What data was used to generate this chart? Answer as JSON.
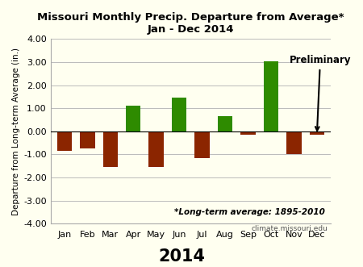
{
  "months": [
    "Jan",
    "Feb",
    "Mar",
    "Apr",
    "May",
    "Jun",
    "Jul",
    "Aug",
    "Sep",
    "Oct",
    "Nov",
    "Dec"
  ],
  "values": [
    -0.85,
    -0.75,
    -1.55,
    1.1,
    -1.55,
    1.45,
    -1.15,
    0.65,
    -0.15,
    3.05,
    -1.0,
    -0.15
  ],
  "colors": [
    "#8B2500",
    "#8B2500",
    "#8B2500",
    "#2E8B00",
    "#8B2500",
    "#2E8B00",
    "#8B2500",
    "#2E8B00",
    "#8B2500",
    "#2E8B00",
    "#8B2500",
    "#8B2500"
  ],
  "title_line1": "Missouri Monthly Precip. Departure from Average*",
  "title_line2": "Jan - Dec 2014",
  "ylabel": "Departure from Long-term Average (in.)",
  "xlabel": "2014",
  "ylim": [
    -4.0,
    4.0
  ],
  "yticks": [
    -4.0,
    -3.0,
    -2.0,
    -1.0,
    0.0,
    1.0,
    2.0,
    3.0,
    4.0
  ],
  "footnote": "*Long-term average: 1895-2010",
  "watermark": "climate.missouri.edu",
  "preliminary_label": "Preliminary",
  "background_color": "#FFFFF0",
  "grid_color": "#bbbbbb",
  "title_fontsize": 9.5,
  "ylabel_fontsize": 7.5,
  "xlabel_fontsize": 15,
  "tick_fontsize": 8
}
